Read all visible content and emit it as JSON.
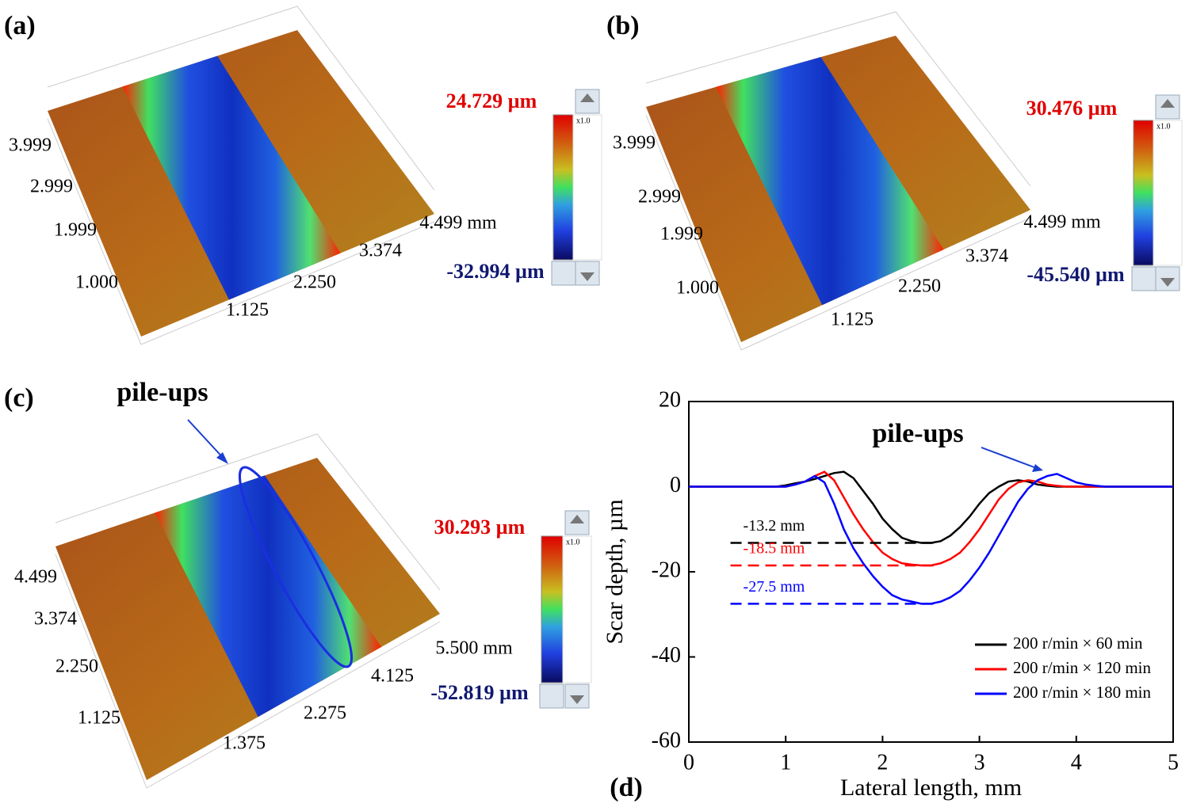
{
  "panels": [
    {
      "label": "(a)",
      "max": "24.729 µm",
      "min": "-32.994 µm",
      "scale": "x1.0",
      "left_ticks": [
        "3.999",
        "2.999",
        "1.999",
        "1.000"
      ],
      "bottom_ticks": [
        "1.125",
        "2.250",
        "3.374",
        "4.499 mm"
      ]
    },
    {
      "label": "(b)",
      "max": "30.476 µm",
      "min": "-45.540 µm",
      "scale": "x1.0",
      "left_ticks": [
        "3.999",
        "2.999",
        "1.999",
        "1.000"
      ],
      "bottom_ticks": [
        "1.125",
        "2.250",
        "3.374",
        "4.499 mm"
      ]
    },
    {
      "label": "(c)",
      "annotation": "pile-ups",
      "max": "30.293 µm",
      "min": "-52.819 µm",
      "scale": "x1.0",
      "left_ticks": [
        "4.499",
        "3.374",
        "2.250",
        "1.125"
      ],
      "bottom_ticks": [
        "1.375",
        "2.275",
        "4.125",
        "5.500 mm"
      ]
    }
  ],
  "chart_data": {
    "type": "line",
    "label": "(d)",
    "annotation": "pile-ups",
    "x_label": "Lateral length, mm",
    "y_label": "Scar depth, µm",
    "xlim": [
      0,
      5
    ],
    "xticks": [
      0,
      1,
      2,
      3,
      4,
      5
    ],
    "ylim": [
      -60,
      20
    ],
    "yticks": [
      -60,
      -40,
      -20,
      0,
      20
    ],
    "legend": "lower right",
    "x": [
      0,
      0.1,
      0.2,
      0.3,
      0.4,
      0.5,
      0.6,
      0.7,
      0.8,
      0.9,
      1,
      1.1,
      1.2,
      1.3,
      1.4,
      1.5,
      1.6,
      1.7,
      1.8,
      1.9,
      2,
      2.1,
      2.2,
      2.3,
      2.4,
      2.5,
      2.6,
      2.7,
      2.8,
      2.9,
      3,
      3.1,
      3.2,
      3.3,
      3.4,
      3.5,
      3.6,
      3.7,
      3.8,
      3.9,
      4,
      4.1,
      4.2,
      4.3,
      4.4,
      4.5,
      4.6,
      4.7,
      4.8,
      4.9,
      5
    ],
    "series": [
      {
        "name": "200 r/min × 60 min",
        "color": "#000000",
        "values": [
          0,
          0,
          0,
          0,
          0,
          0,
          0,
          0,
          0,
          0,
          0.3,
          0.8,
          1.2,
          1.8,
          2.5,
          3.2,
          3.5,
          2,
          -1,
          -4,
          -7.5,
          -10,
          -12,
          -12.8,
          -13.2,
          -13.2,
          -12.8,
          -11.5,
          -9.5,
          -7,
          -4,
          -1.5,
          0,
          1.2,
          1.5,
          1.2,
          0.5,
          0.2,
          0,
          0,
          0,
          0,
          0,
          0,
          0,
          0,
          0,
          0,
          0,
          0,
          0
        ]
      },
      {
        "name": "200 r/min × 120 min",
        "color": "#ff0000",
        "values": [
          0,
          0,
          0,
          0,
          0,
          0,
          0,
          0,
          0,
          0,
          0,
          0.5,
          1.2,
          2.5,
          3.5,
          1.5,
          -2.5,
          -6.5,
          -10,
          -13,
          -15.5,
          -17,
          -18,
          -18.3,
          -18.5,
          -18.5,
          -18,
          -17,
          -15.5,
          -13,
          -10,
          -6.5,
          -3,
          -0.5,
          1,
          1.5,
          1.2,
          0.5,
          0.2,
          0,
          0,
          0,
          0,
          0,
          0,
          0,
          0,
          0,
          0,
          0,
          0
        ]
      },
      {
        "name": "200 r/min × 180 min",
        "color": "#0000ff",
        "values": [
          0,
          0,
          0,
          0,
          0,
          0,
          0,
          0,
          0,
          0,
          0,
          0.5,
          1.2,
          2.5,
          1,
          -4,
          -10,
          -14.5,
          -18,
          -21,
          -23.5,
          -25.5,
          -26.5,
          -27,
          -27.5,
          -27.5,
          -27,
          -26,
          -24.5,
          -22,
          -19,
          -15.5,
          -11.5,
          -7.5,
          -3.5,
          -0.5,
          1.5,
          2.5,
          3,
          2,
          1,
          0.5,
          0.2,
          0,
          0,
          0,
          0,
          0,
          0,
          0,
          0
        ]
      }
    ],
    "reference_lines": [
      {
        "label": "-13.2 mm",
        "value": -13.2,
        "color": "#000000",
        "x_range": [
          0.43,
          2.55
        ]
      },
      {
        "label": "-18.5 mm",
        "value": -18.5,
        "color": "#ff0000",
        "x_range": [
          0.43,
          2.55
        ]
      },
      {
        "label": "-27.5 mm",
        "value": -27.5,
        "color": "#0000ff",
        "x_range": [
          0.43,
          2.55
        ]
      }
    ]
  }
}
